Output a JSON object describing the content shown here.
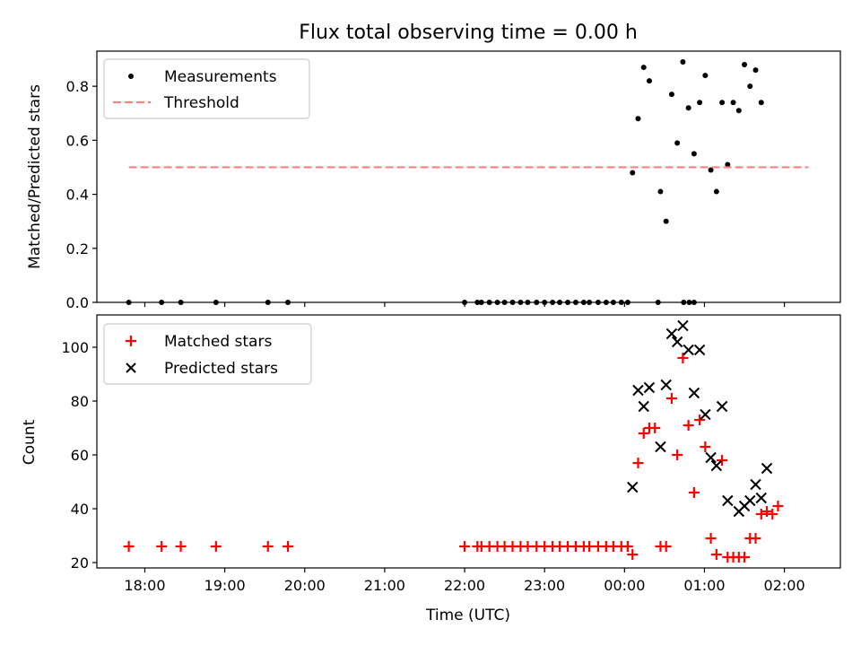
{
  "chart_data": [
    {
      "type": "scatter",
      "title": "Flux total observing time = 0.00 h",
      "xlabel": "",
      "ylabel": "Matched/Predicted stars",
      "xlim": [
        17.4,
        26.7
      ],
      "ylim": [
        0,
        0.93
      ],
      "x_ticks": [
        18,
        19,
        20,
        21,
        22,
        23,
        24,
        25,
        26
      ],
      "y_ticks": [
        0.0,
        0.2,
        0.4,
        0.6,
        0.8
      ],
      "y_tick_labels": [
        "0.0",
        "0.2",
        "0.4",
        "0.6",
        "0.8"
      ],
      "legend": {
        "position": "top-left",
        "entries": [
          "Measurements",
          "Threshold"
        ]
      },
      "series": [
        {
          "name": "Measurements",
          "kind": "points",
          "color": "#000000",
          "points": [
            [
              17.8,
              0
            ],
            [
              18.21,
              0
            ],
            [
              18.45,
              0
            ],
            [
              18.89,
              0
            ],
            [
              19.54,
              0
            ],
            [
              19.79,
              0
            ],
            [
              22.0,
              0
            ],
            [
              22.16,
              0
            ],
            [
              22.21,
              0
            ],
            [
              22.31,
              0
            ],
            [
              22.41,
              0
            ],
            [
              22.5,
              0
            ],
            [
              22.6,
              0
            ],
            [
              22.7,
              0
            ],
            [
              22.79,
              0
            ],
            [
              22.9,
              0
            ],
            [
              23.0,
              0
            ],
            [
              23.1,
              0
            ],
            [
              23.19,
              0
            ],
            [
              23.29,
              0
            ],
            [
              23.39,
              0
            ],
            [
              23.49,
              0
            ],
            [
              23.56,
              0
            ],
            [
              23.67,
              0
            ],
            [
              23.77,
              0
            ],
            [
              23.86,
              0
            ],
            [
              23.96,
              0
            ],
            [
              24.04,
              0
            ],
            [
              24.42,
              0
            ],
            [
              24.74,
              0
            ],
            [
              24.81,
              0
            ],
            [
              24.87,
              0
            ],
            [
              24.1,
              0.48
            ],
            [
              24.17,
              0.68
            ],
            [
              24.24,
              0.87
            ],
            [
              24.31,
              0.82
            ],
            [
              24.45,
              0.41
            ],
            [
              24.52,
              0.3
            ],
            [
              24.59,
              0.77
            ],
            [
              24.66,
              0.59
            ],
            [
              24.73,
              0.89
            ],
            [
              24.8,
              0.72
            ],
            [
              24.87,
              0.55
            ],
            [
              24.94,
              0.74
            ],
            [
              25.01,
              0.84
            ],
            [
              25.08,
              0.49
            ],
            [
              25.15,
              0.41
            ],
            [
              25.22,
              0.74
            ],
            [
              25.29,
              0.51
            ],
            [
              25.36,
              0.74
            ],
            [
              25.43,
              0.71
            ],
            [
              25.5,
              0.88
            ],
            [
              25.57,
              0.8
            ],
            [
              25.64,
              0.86
            ],
            [
              25.71,
              0.74
            ]
          ]
        },
        {
          "name": "Threshold",
          "kind": "line",
          "color": "#ff7f7f",
          "dashed": true,
          "points": [
            [
              17.8,
              0.5
            ],
            [
              26.3,
              0.5
            ]
          ]
        }
      ]
    },
    {
      "type": "scatter",
      "title": "",
      "xlabel": "Time (UTC)",
      "ylabel": "Count",
      "xlim": [
        17.4,
        26.7
      ],
      "ylim": [
        18,
        112
      ],
      "x_ticks": [
        18,
        19,
        20,
        21,
        22,
        23,
        24,
        25,
        26
      ],
      "x_tick_labels": [
        "18:00",
        "19:00",
        "20:00",
        "21:00",
        "22:00",
        "23:00",
        "00:00",
        "01:00",
        "02:00"
      ],
      "y_ticks": [
        20,
        40,
        60,
        80,
        100
      ],
      "y_tick_labels": [
        "20",
        "40",
        "60",
        "80",
        "100"
      ],
      "legend": {
        "position": "top-left",
        "entries": [
          "Matched stars",
          "Predicted stars"
        ]
      },
      "series": [
        {
          "name": "Matched stars",
          "marker": "plus",
          "color": "#ff0000",
          "points": [
            [
              17.8,
              26
            ],
            [
              18.21,
              26
            ],
            [
              18.45,
              26
            ],
            [
              18.89,
              26
            ],
            [
              19.54,
              26
            ],
            [
              19.79,
              26
            ],
            [
              22.0,
              26
            ],
            [
              22.16,
              26
            ],
            [
              22.21,
              26
            ],
            [
              22.31,
              26
            ],
            [
              22.41,
              26
            ],
            [
              22.5,
              26
            ],
            [
              22.6,
              26
            ],
            [
              22.7,
              26
            ],
            [
              22.79,
              26
            ],
            [
              22.9,
              26
            ],
            [
              23.0,
              26
            ],
            [
              23.1,
              26
            ],
            [
              23.19,
              26
            ],
            [
              23.29,
              26
            ],
            [
              23.39,
              26
            ],
            [
              23.49,
              26
            ],
            [
              23.56,
              26
            ],
            [
              23.67,
              26
            ],
            [
              23.77,
              26
            ],
            [
              23.86,
              26
            ],
            [
              23.96,
              26
            ],
            [
              24.04,
              26
            ],
            [
              24.1,
              23
            ],
            [
              24.17,
              57
            ],
            [
              24.24,
              68
            ],
            [
              24.31,
              70
            ],
            [
              24.38,
              70
            ],
            [
              24.45,
              26
            ],
            [
              24.52,
              26
            ],
            [
              24.59,
              81
            ],
            [
              24.66,
              60
            ],
            [
              24.73,
              96
            ],
            [
              24.8,
              71
            ],
            [
              24.87,
              46
            ],
            [
              24.94,
              73
            ],
            [
              25.01,
              63
            ],
            [
              25.08,
              29
            ],
            [
              25.15,
              23
            ],
            [
              25.22,
              58
            ],
            [
              25.29,
              22
            ],
            [
              25.36,
              22
            ],
            [
              25.43,
              22
            ],
            [
              25.5,
              22
            ],
            [
              25.57,
              29
            ],
            [
              25.64,
              29
            ],
            [
              25.71,
              38
            ],
            [
              25.78,
              39
            ],
            [
              25.85,
              38
            ],
            [
              25.92,
              41
            ]
          ]
        },
        {
          "name": "Predicted stars",
          "marker": "x",
          "color": "#000000",
          "points": [
            [
              24.1,
              48
            ],
            [
              24.17,
              84
            ],
            [
              24.24,
              78
            ],
            [
              24.31,
              85
            ],
            [
              24.45,
              63
            ],
            [
              24.52,
              86
            ],
            [
              24.59,
              105
            ],
            [
              24.66,
              102
            ],
            [
              24.73,
              108
            ],
            [
              24.8,
              99
            ],
            [
              24.87,
              83
            ],
            [
              24.94,
              99
            ],
            [
              25.01,
              75
            ],
            [
              25.08,
              59
            ],
            [
              25.15,
              56
            ],
            [
              25.22,
              78
            ],
            [
              25.29,
              43
            ],
            [
              25.43,
              39
            ],
            [
              25.5,
              41
            ],
            [
              25.57,
              43
            ],
            [
              25.64,
              49
            ],
            [
              25.71,
              44
            ],
            [
              25.78,
              55
            ]
          ]
        }
      ]
    }
  ]
}
